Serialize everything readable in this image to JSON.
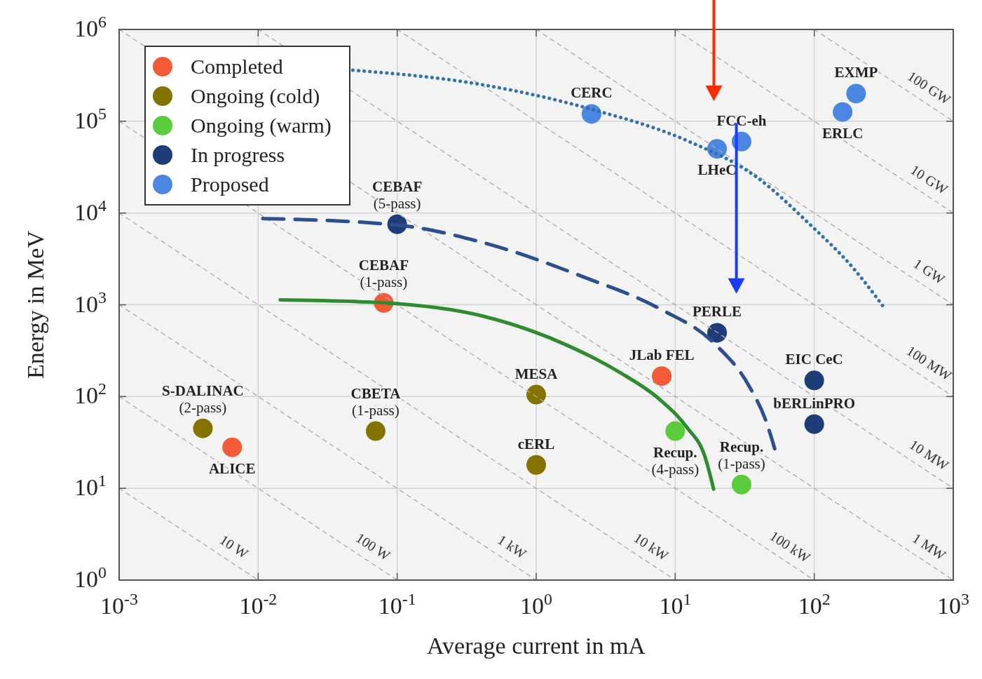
{
  "chart_data": {
    "type": "scatter",
    "xlabel": "Average current in mA",
    "ylabel": "Energy in MeV",
    "log": "xy",
    "grid": true,
    "legend": "top left",
    "marker": "circle",
    "xlim": [
      0.001,
      1000
    ],
    "ylim": [
      1,
      1000000
    ],
    "xticks": [
      {
        "value": 0.001,
        "label": "10$^{-3}$"
      },
      {
        "value": 0.01,
        "label": "10$^{-2}$"
      },
      {
        "value": 0.1,
        "label": "10$^{-1}$"
      },
      {
        "value": 1,
        "label": "10$^{0}$"
      },
      {
        "value": 10,
        "label": "10$^{1}$"
      },
      {
        "value": 100,
        "label": "10$^{2}$"
      },
      {
        "value": 1000,
        "label": "10$^{3}$"
      }
    ],
    "yticks": [
      {
        "value": 1,
        "label": "10$^{0}$"
      },
      {
        "value": 10,
        "label": "10$^{1}$"
      },
      {
        "value": 100,
        "label": "10$^{2}$"
      },
      {
        "value": 1000,
        "label": "10$^{3}$"
      },
      {
        "value": 10000,
        "label": "10$^{4}$"
      },
      {
        "value": 100000,
        "label": "10$^{5}$"
      },
      {
        "value": 1000000,
        "label": "10$^{6}$"
      }
    ],
    "series": [
      {
        "type": "line",
        "name": "10 W",
        "color": "#aaaaaa",
        "line_style": "dashed",
        "marker": "none",
        "x": [
          0.001,
          0.01
        ],
        "values": [
          10,
          1
        ]
      },
      {
        "type": "line",
        "name": "100 W",
        "color": "#aaaaaa",
        "line_style": "dashed",
        "marker": "none",
        "x": [
          0.001,
          0.1
        ],
        "values": [
          100,
          1
        ]
      },
      {
        "type": "line",
        "name": "1 kW",
        "color": "#aaaaaa",
        "line_style": "dashed",
        "marker": "none",
        "x": [
          0.001,
          1
        ],
        "values": [
          1000,
          1
        ]
      },
      {
        "type": "line",
        "name": "10 kW",
        "color": "#aaaaaa",
        "line_style": "dashed",
        "marker": "none",
        "x": [
          0.001,
          10
        ],
        "values": [
          10000,
          1
        ]
      },
      {
        "type": "line",
        "name": "100 kW",
        "color": "#aaaaaa",
        "line_style": "dashed",
        "marker": "none",
        "x": [
          0.001,
          100
        ],
        "values": [
          100000,
          1
        ]
      },
      {
        "type": "line",
        "name": "1 MW",
        "color": "#aaaaaa",
        "line_style": "dashed",
        "marker": "none",
        "x": [
          0.001,
          1000
        ],
        "values": [
          1000000,
          1
        ]
      },
      {
        "type": "line",
        "name": "10 MW",
        "color": "#aaaaaa",
        "line_style": "dashed",
        "marker": "none",
        "x": [
          0.01,
          1000
        ],
        "values": [
          1000000,
          10
        ]
      },
      {
        "type": "line",
        "name": "100 MW",
        "color": "#aaaaaa",
        "line_style": "dashed",
        "marker": "none",
        "x": [
          0.1,
          1000
        ],
        "values": [
          1000000,
          100
        ]
      },
      {
        "type": "line",
        "name": "1 GW",
        "color": "#aaaaaa",
        "line_style": "dashed",
        "marker": "none",
        "x": [
          1,
          1000
        ],
        "values": [
          1000000,
          1000
        ]
      },
      {
        "type": "line",
        "name": "10 GW",
        "color": "#aaaaaa",
        "line_style": "dashed",
        "marker": "none",
        "x": [
          10,
          1000
        ],
        "values": [
          1000000,
          10000
        ]
      },
      {
        "type": "line",
        "name": "100 GW",
        "color": "#aaaaaa",
        "line_style": "dashed",
        "marker": "none",
        "x": [
          100,
          1000
        ],
        "values": [
          1000000,
          100000
        ]
      },
      {
        "type": "line",
        "color": "#2e6fb0",
        "line_style": "dotted",
        "marker": "none",
        "x": [
          0.048,
          0.41,
          2.5,
          12.3,
          38,
          94,
          187,
          315
        ],
        "values": [
          360000,
          250000,
          135000,
          61000,
          25000,
          7400,
          2600,
          950
        ]
      },
      {
        "type": "line",
        "color": "#2d4f8f",
        "line_style": "dashed",
        "marker": "none",
        "x": [
          0.0108,
          0.1,
          0.41,
          2.24,
          7.8,
          19.3,
          34,
          45,
          52
        ],
        "values": [
          8700,
          7400,
          4780,
          1985,
          900,
          374,
          130,
          54,
          27
        ]
      },
      {
        "type": "line",
        "color": "#2e8b2e",
        "line_style": "solid",
        "marker": "none",
        "x": [
          0.0144,
          0.08,
          0.41,
          1.59,
          3.95,
          7.8,
          12.3,
          16.3,
          18.9
        ],
        "values": [
          1130,
          1050,
          755,
          374,
          185,
          92,
          45,
          22.5,
          9.8
        ]
      },
      {
        "name": "Completed",
        "color": "#f25a38",
        "x": [
          0.08,
          8,
          0.0065
        ],
        "values": [
          1050,
          167,
          28
        ]
      },
      {
        "name": "Ongoing (cold)",
        "color": "#857300",
        "x": [
          0.004,
          0.07,
          1,
          1
        ],
        "values": [
          45,
          42,
          105,
          18
        ]
      },
      {
        "name": "Ongoing (warm)",
        "color": "#5acb3a",
        "x": [
          10,
          30
        ],
        "values": [
          42,
          11
        ]
      },
      {
        "name": "In progress",
        "color": "#1e3c78",
        "x": [
          0.1,
          20,
          100,
          100
        ],
        "values": [
          7550,
          495,
          150,
          50
        ]
      },
      {
        "name": "Proposed",
        "color": "#4b86e3",
        "x": [
          2.5,
          20,
          30,
          160,
          200
        ],
        "values": [
          120000,
          50000,
          60000,
          126000,
          200000
        ]
      }
    ],
    "annotations": [
      {
        "text": "CEBAF\n(5-pass)",
        "x": 0.1,
        "y": 7550
      },
      {
        "text": "CEBAF\n(1-pass)",
        "x": 0.08,
        "y": 1050
      },
      {
        "text": "CERC",
        "x": 2.5,
        "y": 120000
      },
      {
        "text": "LHeC",
        "x": 20,
        "y": 50000
      },
      {
        "text": "FCC-eh",
        "x": 30,
        "y": 60000
      },
      {
        "text": "EXMP",
        "x": 200,
        "y": 200000
      },
      {
        "text": "ERLC",
        "x": 160,
        "y": 126000
      },
      {
        "text": "PERLE",
        "x": 20,
        "y": 495
      },
      {
        "text": "JLab FEL",
        "x": 8,
        "y": 167
      },
      {
        "text": "EIC CeC",
        "x": 100,
        "y": 150
      },
      {
        "text": "bERLinPRO",
        "x": 100,
        "y": 50
      },
      {
        "text": "MESA",
        "x": 1,
        "y": 105
      },
      {
        "text": "cERL",
        "x": 1,
        "y": 18
      },
      {
        "text": "Recup.\n(4-pass)",
        "x": 10,
        "y": 42
      },
      {
        "text": "Recup.\n(1-pass)",
        "x": 30,
        "y": 11
      },
      {
        "text": "CBETA\n(1-pass)",
        "x": 0.07,
        "y": 42
      },
      {
        "text": "S-DALINAC\n(2-pass)",
        "x": 0.004,
        "y": 45
      },
      {
        "text": "ALICE",
        "x": 0.0065,
        "y": 28
      }
    ]
  }
}
